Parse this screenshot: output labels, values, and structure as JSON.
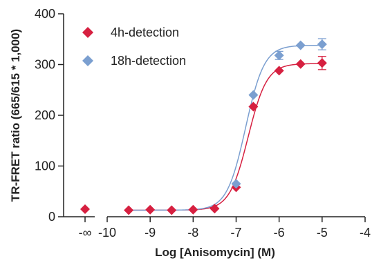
{
  "chart_data": {
    "type": "scatter",
    "xlabel": "Log [Anisomycin] (M)",
    "ylabel": "TR-FRET ratio (665/615 * 1,000)",
    "ylim": [
      0,
      400
    ],
    "xlim": [
      -10,
      -4
    ],
    "y_ticks": [
      "0",
      "100",
      "200",
      "300",
      "400"
    ],
    "x_ticks": [
      "-10",
      "-9",
      "-8",
      "-7",
      "-6",
      "-5",
      "-4"
    ],
    "x_break_label": "-∞",
    "grid": false,
    "legend_position": "top-left",
    "series": [
      {
        "name": "4h-detection",
        "color": "#d62040",
        "marker": "diamond",
        "blank": {
          "y": 15
        },
        "x": [
          -9.5,
          -9,
          -8.5,
          -8,
          -7.5,
          -7,
          -6.6,
          -6,
          -5.5,
          -5
        ],
        "y": [
          13,
          14,
          13,
          14,
          16,
          58,
          217,
          288,
          301,
          303
        ],
        "err": [
          0,
          0,
          0,
          0,
          0,
          0,
          0,
          0,
          0,
          13
        ],
        "fit": {
          "bottom": 13,
          "top": 302,
          "logEC50": -6.72,
          "hill": 2.0
        }
      },
      {
        "name": "18h-detection",
        "color": "#7b9fd0",
        "marker": "diamond",
        "x": [
          -7,
          -6.6,
          -6,
          -5.5,
          -5
        ],
        "y": [
          65,
          240,
          318,
          338,
          340
        ],
        "err": [
          0,
          0,
          8,
          0,
          11
        ],
        "fit": {
          "bottom": 13,
          "top": 338,
          "logEC50": -6.78,
          "hill": 2.0
        }
      }
    ]
  }
}
